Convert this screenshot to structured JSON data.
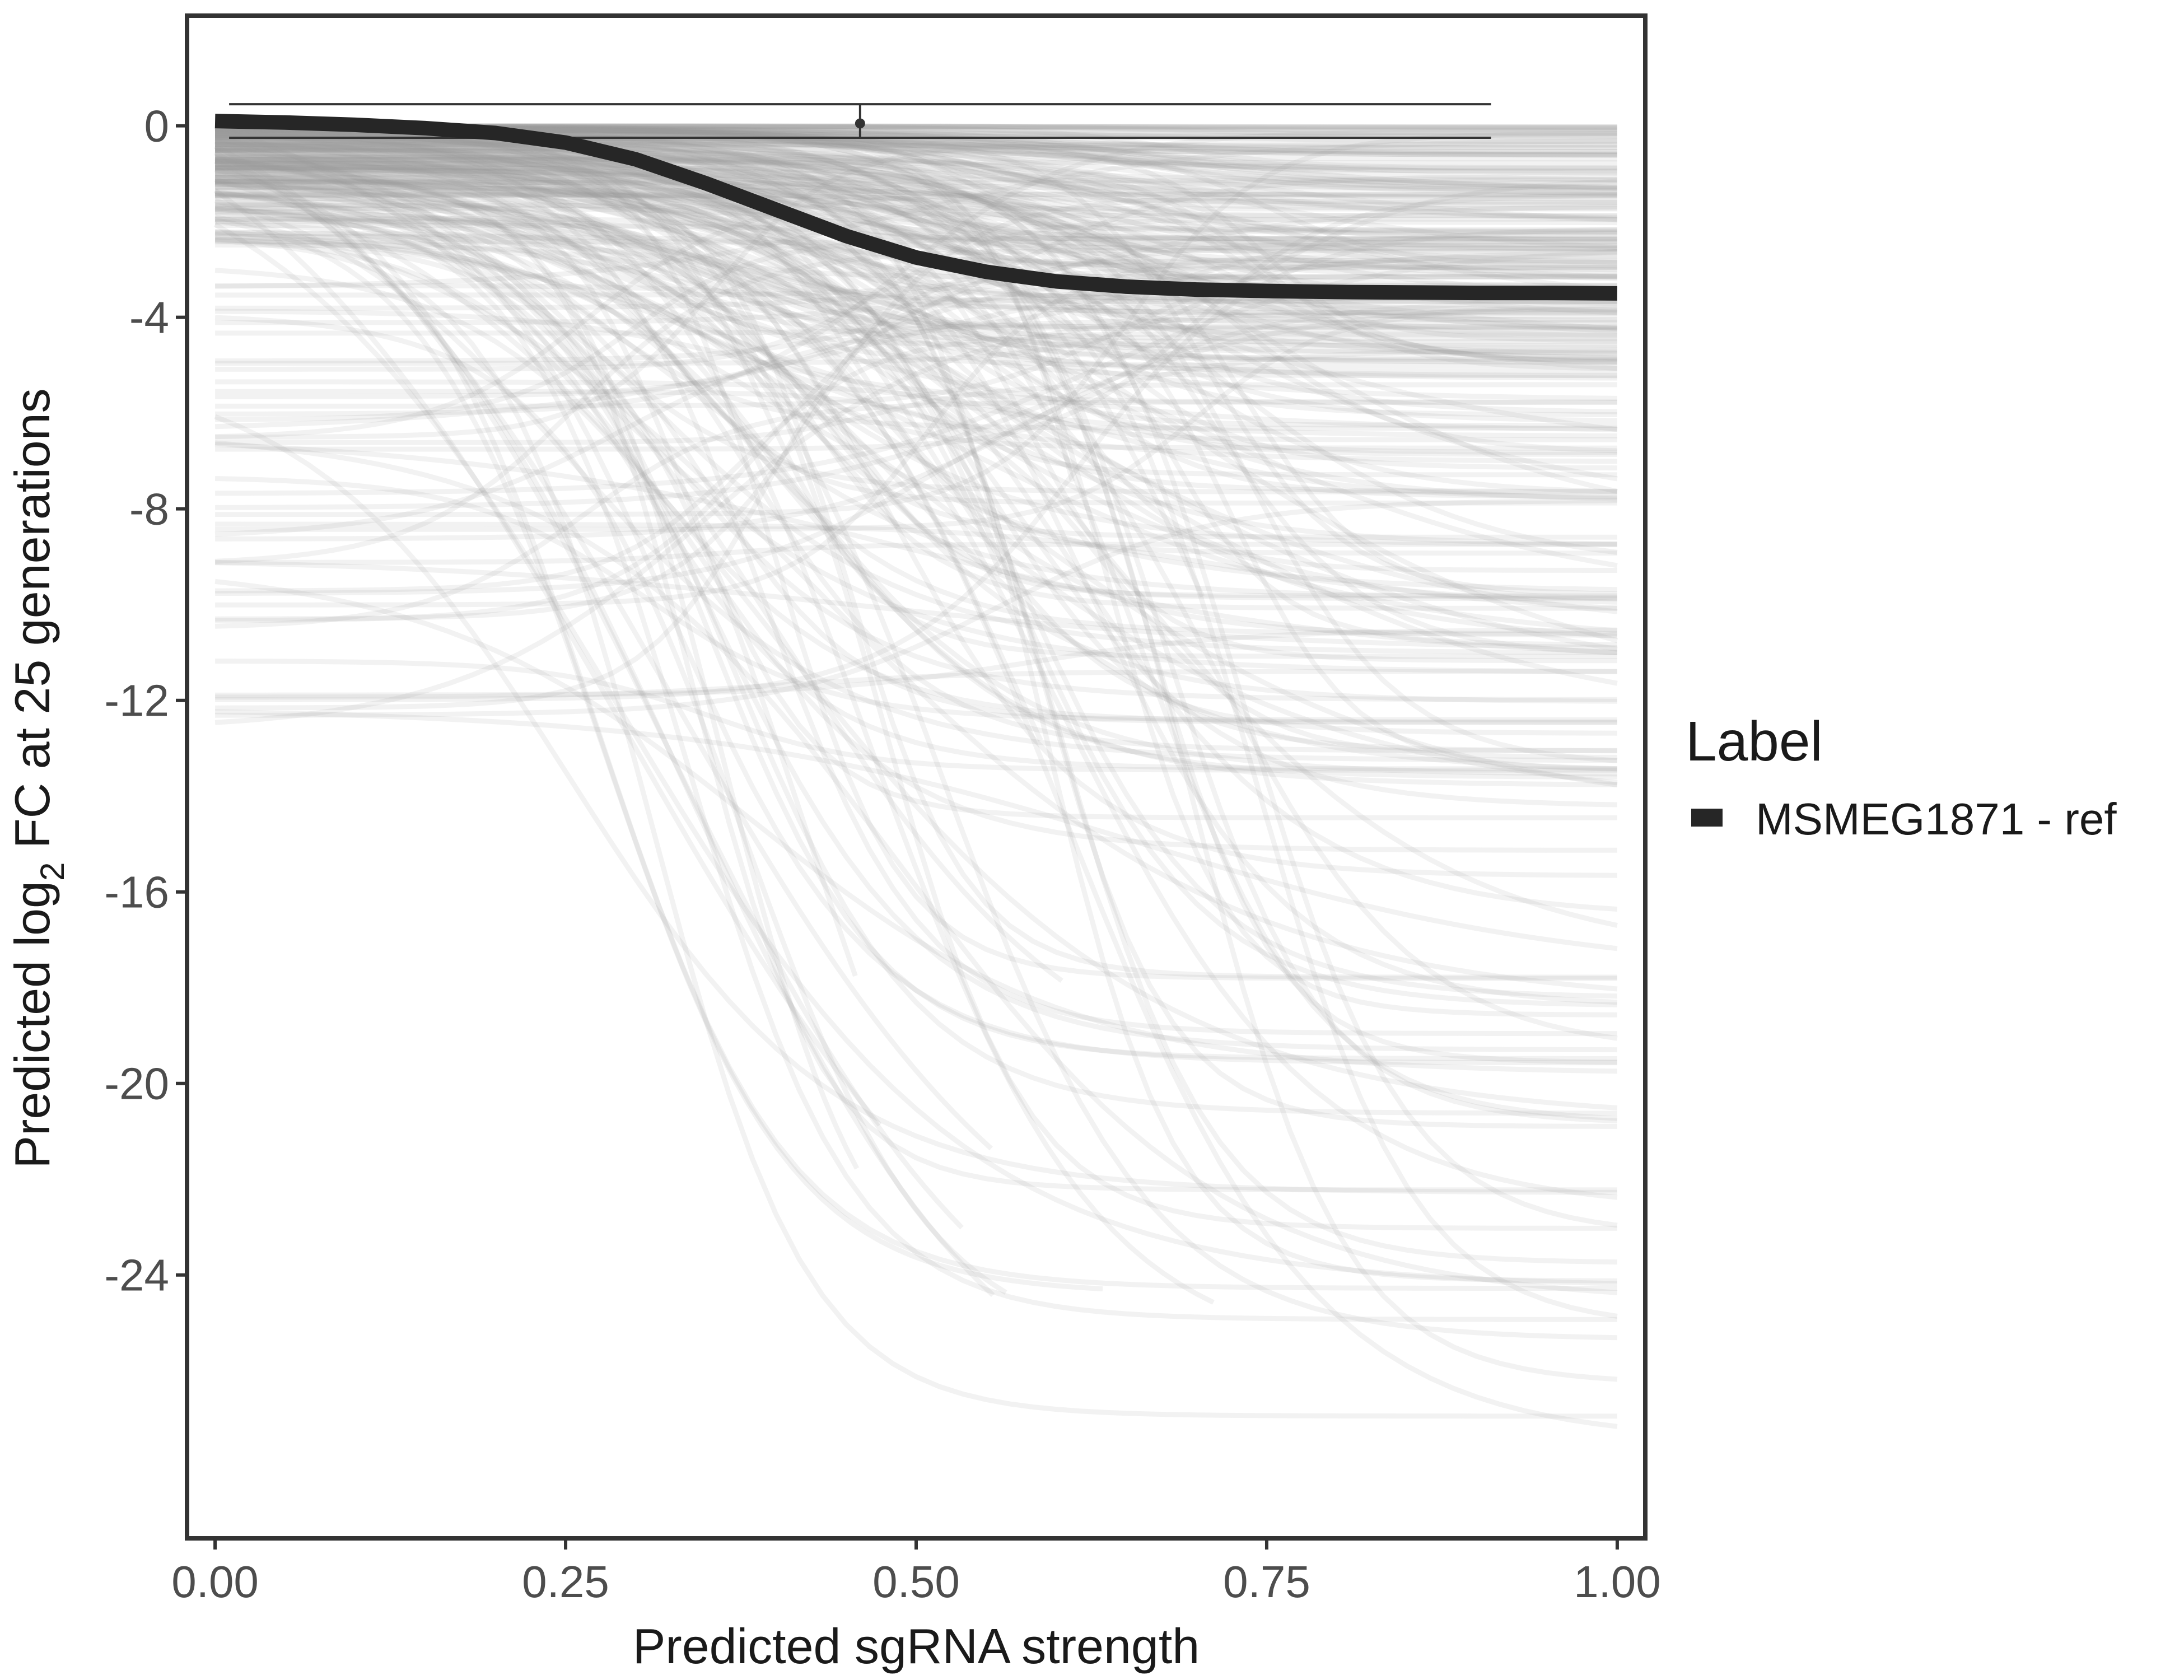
{
  "chart_data": {
    "type": "line",
    "xlabel": "Predicted sgRNA strength",
    "ylabel": {
      "prefix": "Predicted  log",
      "subscript": "2",
      "suffix": " FC at 25 generations"
    },
    "xlim": [
      -0.02,
      1.02
    ],
    "ylim": [
      -29.5,
      2.3
    ],
    "x_ticks": [
      0.0,
      0.25,
      0.5,
      0.75,
      1.0
    ],
    "x_tick_labels": [
      "0.00",
      "0.25",
      "0.50",
      "0.75",
      "1.00"
    ],
    "y_ticks": [
      0,
      -4,
      -8,
      -12,
      -16,
      -20,
      -24
    ],
    "y_tick_labels": [
      "0",
      "-4",
      "-8",
      "-12",
      "-16",
      "-20",
      "-24"
    ],
    "grid": false,
    "legend": {
      "title": "Label",
      "position": "right",
      "entries": [
        {
          "label": "MSMEG1871 - ref",
          "color": "#262626"
        }
      ]
    },
    "highlight_series": {
      "name": "MSMEG1871 - ref",
      "color": "#262626",
      "x": [
        0.0,
        0.05,
        0.1,
        0.15,
        0.2,
        0.25,
        0.3,
        0.35,
        0.4,
        0.45,
        0.5,
        0.55,
        0.6,
        0.65,
        0.7,
        0.75,
        0.8,
        0.85,
        0.9,
        0.95,
        1.0
      ],
      "y": [
        0.1,
        0.07,
        0.02,
        -0.05,
        -0.15,
        -0.35,
        -0.7,
        -1.2,
        -1.75,
        -2.3,
        -2.75,
        -3.05,
        -3.25,
        -3.36,
        -3.42,
        -3.45,
        -3.47,
        -3.48,
        -3.49,
        -3.49,
        -3.5
      ]
    },
    "error_bar": {
      "x": 0.46,
      "y": 0.05,
      "y_low": -0.25,
      "y_high": 0.45,
      "x_low": 0.01,
      "x_high": 0.91
    },
    "background_curves": {
      "description_count": 320,
      "color": "#a6a6a6",
      "note": "many semi-transparent grey sigmoid prediction curves from ~0 down to as low as ~-28"
    }
  },
  "colors": {
    "background_lines": "#9e9e9e",
    "highlight": "#262626",
    "axis": "#333333",
    "tick_text": "#4d4d4d"
  }
}
